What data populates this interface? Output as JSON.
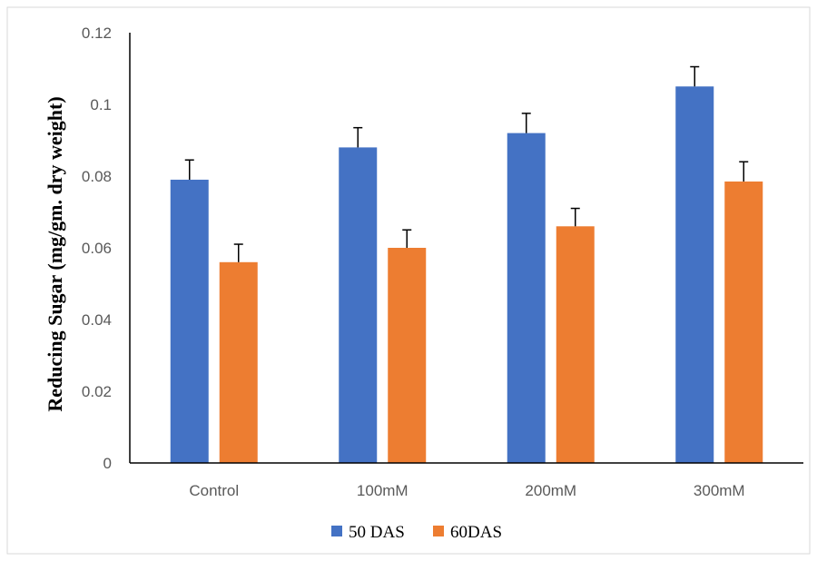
{
  "chart_data": {
    "type": "bar",
    "categories": [
      "Control",
      "100mM",
      "200mM",
      "300mM"
    ],
    "series": [
      {
        "name": "50 DAS",
        "color": "#4472C4",
        "values": [
          0.079,
          0.088,
          0.092,
          0.105
        ],
        "errors": [
          0.0055,
          0.0055,
          0.0055,
          0.0055
        ]
      },
      {
        "name": "60DAS",
        "color": "#ED7D31",
        "values": [
          0.056,
          0.06,
          0.066,
          0.0785
        ],
        "errors": [
          0.005,
          0.005,
          0.005,
          0.0055
        ]
      }
    ],
    "title": "",
    "xlabel": "",
    "ylabel": "Reducing Sugar (mg/gm. dry weight)",
    "ylim": [
      0,
      0.12
    ],
    "yticks": [
      "0",
      "0.02",
      "0.04",
      "0.06",
      "0.08",
      "0.1",
      "0.12"
    ],
    "ytick_values": [
      0,
      0.02,
      0.04,
      0.06,
      0.08,
      0.1,
      0.12
    ],
    "grid": false,
    "legend_position": "bottom"
  }
}
